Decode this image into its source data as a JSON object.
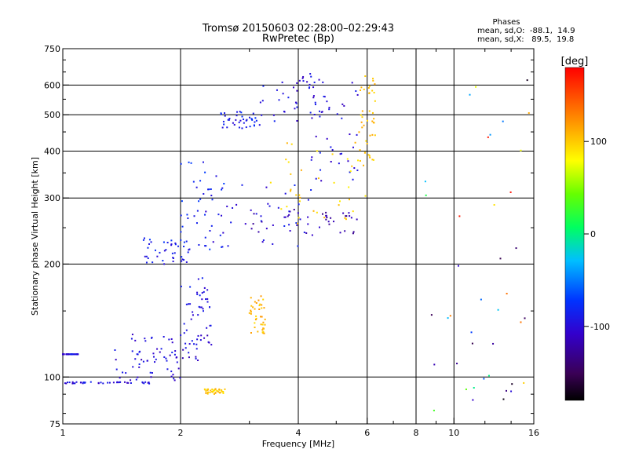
{
  "chart_data": {
    "type": "scatter",
    "title": "Tromsø 20150603 02:28:00–02:29:43",
    "subtitle": "RwPretec (Bp)",
    "stats": {
      "heading": "Phases",
      "line1": "mean, sd,O:  -88.1,  14.9",
      "line2": "mean, sd,X:   89.5,  19.8"
    },
    "xlabel": "Frequency [MHz]",
    "ylabel": "Stationary phase Virtual Height [km]",
    "x_scale": "log",
    "y_scale": "log",
    "xlim": [
      1,
      16
    ],
    "ylim": [
      75,
      750
    ],
    "x_ticks": [
      1,
      2,
      4,
      6,
      8,
      10,
      16
    ],
    "y_ticks": [
      75,
      100,
      200,
      300,
      400,
      500,
      600,
      750
    ],
    "x_gridlines": [
      2,
      4,
      6,
      8,
      10
    ],
    "y_gridlines": [
      100,
      200,
      300,
      400,
      500,
      600
    ],
    "colorbar": {
      "label": "[deg]",
      "range": [
        -180,
        180
      ],
      "ticks": [
        100,
        0,
        -100
      ],
      "colormap": "rainbow (black-purple-blue-cyan-green-yellow-red)"
    },
    "series": [
      {
        "values": [
          {
            "x": [
              1.0,
              1.1
            ],
            "y": [
              115,
              115
            ],
            "phase": -100
          },
          {
            "x": [
              1.0,
              1.7
            ],
            "y": [
              96,
              97
            ],
            "phase": -100
          },
          {
            "x": [
              1.3,
              2.0
            ],
            "y": [
              98,
              120
            ],
            "phase": -100
          },
          {
            "x": [
              1.5,
              2.4
            ],
            "y": [
              110,
              130
            ],
            "phase": -105
          },
          {
            "x": [
              2.0,
              2.4
            ],
            "y": [
              120,
              185
            ],
            "phase": -95
          },
          {
            "x": [
              1.6,
              2.1
            ],
            "y": [
              200,
              235
            ],
            "phase": -90
          },
          {
            "x": [
              2.0,
              2.6
            ],
            "y": [
              215,
              380
            ],
            "phase": -85
          },
          {
            "x": [
              2.3,
              4.4
            ],
            "y": [
              220,
              330
            ],
            "phase": -95
          },
          {
            "x": [
              3.0,
              5.7
            ],
            "y": [
              240,
              280
            ],
            "phase": -120
          },
          {
            "x": [
              2.5,
              3.2
            ],
            "y": [
              460,
              510
            ],
            "phase": -90
          },
          {
            "x": [
              3.2,
              4.6
            ],
            "y": [
              480,
              645
            ],
            "phase": -100
          },
          {
            "x": [
              4.3,
              5.7
            ],
            "y": [
              330,
              640
            ],
            "phase": -100
          },
          {
            "x": [
              3.4,
              6.0
            ],
            "y": [
              255,
              430
            ],
            "phase": 100
          },
          {
            "x": [
              5.7,
              6.3
            ],
            "y": [
              350,
              650
            ],
            "phase": 105
          },
          {
            "x": [
              3.0,
              3.3
            ],
            "y": [
              130,
              165
            ],
            "phase": 110
          },
          {
            "x": [
              2.3,
              2.6
            ],
            "y": [
              90,
              93
            ],
            "phase": 105
          },
          {
            "x": [
              8.0,
              16.0
            ],
            "y": [
              78,
              660
            ],
            "phase": 0
          }
        ]
      }
    ]
  }
}
